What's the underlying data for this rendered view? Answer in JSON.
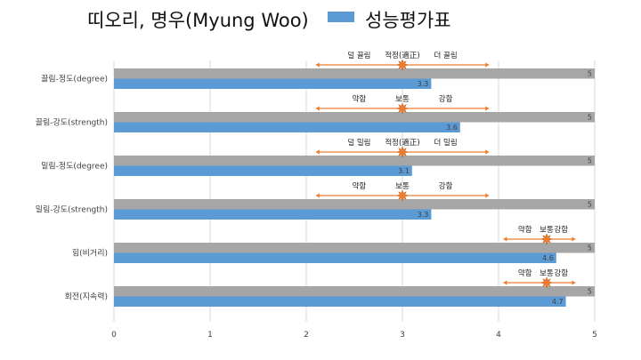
{
  "chart_data": {
    "type": "bar",
    "orientation": "horizontal",
    "title": "띠오리, 명우(Myung Woo)",
    "legend_position": "top",
    "categories": [
      "끌림-정도(degree)",
      "끌림-강도(strength)",
      "밀림-정도(degree)",
      "밀림-강도(strength)",
      "힘(비거리)",
      "회전(지속력)"
    ],
    "series": [
      {
        "name": "",
        "color": "#a6a6a6",
        "values": [
          5,
          5,
          5,
          5,
          5,
          5
        ]
      },
      {
        "name": "성능평가표",
        "color": "#5b9bd5",
        "values": [
          3.3,
          3.6,
          3.1,
          3.3,
          4.6,
          4.7
        ]
      }
    ],
    "xlim": [
      0,
      5
    ],
    "xticks": [
      "0",
      "1",
      "2",
      "3",
      "4",
      "5"
    ],
    "grid": true,
    "annotations": [
      {
        "left": "덜 끌림",
        "middle": "적정(適正)",
        "right": "더 끌림",
        "center": 3,
        "from": 2.1,
        "to": 3.9
      },
      {
        "left": "약함",
        "middle": "보통",
        "right": "강함",
        "center": 3,
        "from": 2.1,
        "to": 3.9
      },
      {
        "left": "덜 밀림",
        "middle": "적정(適正)",
        "right": "더 밀림",
        "center": 3,
        "from": 2.1,
        "to": 3.9
      },
      {
        "left": "약함",
        "middle": "보통",
        "right": "강함",
        "center": 3,
        "from": 2.1,
        "to": 3.9
      },
      {
        "left": "약함",
        "middle": "보통",
        "right": "강함",
        "center": 4.5,
        "from": 4.05,
        "to": 4.8
      },
      {
        "left": "약함",
        "middle": "보통",
        "right": "강함",
        "center": 4.5,
        "from": 4.05,
        "to": 4.8
      }
    ],
    "colors": {
      "marker": "#ed7d31",
      "grid": "#d9d9d9"
    }
  }
}
